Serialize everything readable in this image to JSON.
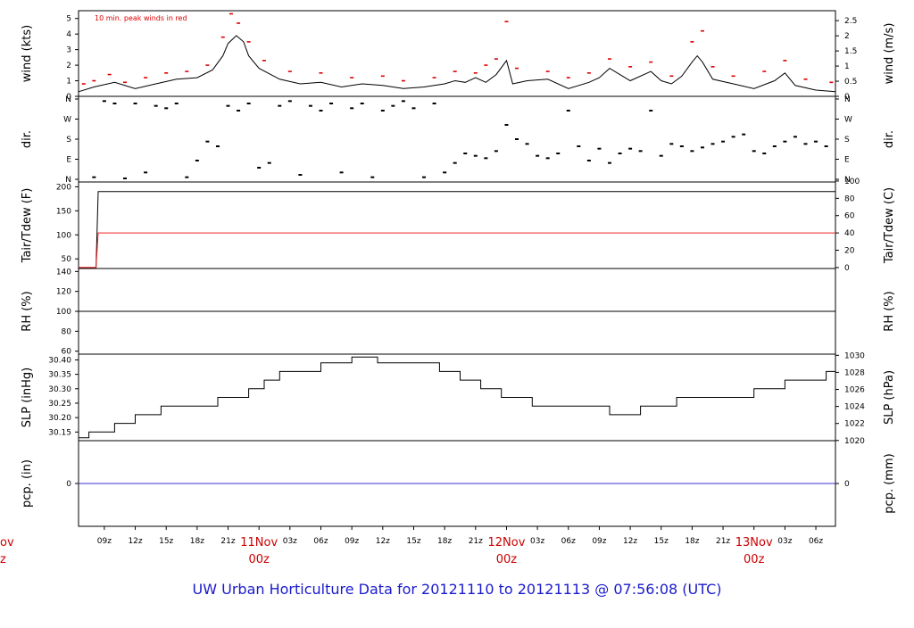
{
  "title": "UW Urban Horticulture Data for 20121110  to  20121113 @ 07:56:08  (UTC)",
  "colors": {
    "title": "#1a1acd",
    "date_labels": "#cc0000",
    "peak_wind": "#dd0000",
    "tdew_line": "#ee2222",
    "precip_line": "#3333cc",
    "data": "#000000"
  },
  "time_axis": {
    "start_hour": 6.5,
    "end_hour": 79.9,
    "tick_hours": [
      9,
      12,
      15,
      18,
      21,
      24,
      27,
      30,
      33,
      36,
      39,
      42,
      45,
      48,
      51,
      54,
      57,
      60,
      63,
      66,
      69,
      72,
      75,
      78
    ],
    "tick_labels": [
      "09z",
      "12z",
      "15z",
      "18z",
      "21z",
      "",
      "03z",
      "06z",
      "09z",
      "12z",
      "15z",
      "18z",
      "21z",
      "",
      "03z",
      "06z",
      "09z",
      "12z",
      "15z",
      "18z",
      "21z",
      "",
      "03z",
      "06z"
    ],
    "day_hours": [
      24,
      48,
      72
    ],
    "day_labels": [
      {
        "date": "11Nov",
        "time": "00z"
      },
      {
        "date": "12Nov",
        "time": "00z"
      },
      {
        "date": "13Nov",
        "time": "00z"
      }
    ],
    "cutoff_label": {
      "date": "ov",
      "time": "z"
    }
  },
  "chart_data": [
    {
      "type": "line",
      "id": "wind",
      "ylabel": "wind (kts)",
      "ylabel_right": "wind (m/s)",
      "ylim": [
        0,
        5.5
      ],
      "yticks": [
        0,
        1,
        2,
        3,
        4,
        5
      ],
      "yticks_right": [
        0,
        0.5,
        1,
        1.5,
        2,
        2.5
      ],
      "annotation": "10 min. peak winds in red",
      "series": [
        {
          "values": [
            [
              6.5,
              0.3
            ],
            [
              8,
              0.6
            ],
            [
              10,
              0.9
            ],
            [
              12,
              0.5
            ],
            [
              14,
              0.8
            ],
            [
              16,
              1.1
            ],
            [
              18,
              1.2
            ],
            [
              19.5,
              1.7
            ],
            [
              20.5,
              2.6
            ],
            [
              21,
              3.4
            ],
            [
              21.8,
              3.9
            ],
            [
              22.5,
              3.5
            ],
            [
              23,
              2.6
            ],
            [
              24,
              1.8
            ],
            [
              26,
              1.1
            ],
            [
              28,
              0.8
            ],
            [
              30,
              0.9
            ],
            [
              32,
              0.6
            ],
            [
              34,
              0.8
            ],
            [
              36,
              0.7
            ],
            [
              38,
              0.5
            ],
            [
              40,
              0.6
            ],
            [
              42,
              0.8
            ],
            [
              43,
              1.0
            ],
            [
              44,
              0.9
            ],
            [
              45,
              1.2
            ],
            [
              46,
              0.9
            ],
            [
              47,
              1.4
            ],
            [
              48,
              2.3
            ],
            [
              48.6,
              0.8
            ],
            [
              50,
              1.0
            ],
            [
              52,
              1.1
            ],
            [
              54,
              0.5
            ],
            [
              56,
              0.9
            ],
            [
              57,
              1.2
            ],
            [
              58,
              1.8
            ],
            [
              59,
              1.4
            ],
            [
              60,
              1.0
            ],
            [
              62,
              1.6
            ],
            [
              63,
              1.0
            ],
            [
              64,
              0.8
            ],
            [
              65,
              1.3
            ],
            [
              66,
              2.2
            ],
            [
              66.5,
              2.6
            ],
            [
              67,
              2.2
            ],
            [
              68,
              1.1
            ],
            [
              70,
              0.8
            ],
            [
              72,
              0.5
            ],
            [
              74,
              1.0
            ],
            [
              75,
              1.5
            ],
            [
              76,
              0.7
            ],
            [
              78,
              0.4
            ],
            [
              79.9,
              0.3
            ]
          ]
        },
        {
          "values": [
            [
              7,
              0.8
            ],
            [
              8,
              1.0
            ],
            [
              9.5,
              1.4
            ],
            [
              11,
              0.9
            ],
            [
              13,
              1.2
            ],
            [
              15,
              1.5
            ],
            [
              17,
              1.6
            ],
            [
              19,
              2.0
            ],
            [
              20.5,
              3.8
            ],
            [
              21.3,
              5.3
            ],
            [
              22,
              4.7
            ],
            [
              23,
              3.5
            ],
            [
              24.5,
              2.3
            ],
            [
              27,
              1.6
            ],
            [
              30,
              1.5
            ],
            [
              33,
              1.2
            ],
            [
              36,
              1.3
            ],
            [
              38,
              1.0
            ],
            [
              41,
              1.2
            ],
            [
              43,
              1.6
            ],
            [
              45,
              1.5
            ],
            [
              46,
              2.0
            ],
            [
              47,
              2.4
            ],
            [
              48,
              4.8
            ],
            [
              49,
              1.8
            ],
            [
              52,
              1.6
            ],
            [
              54,
              1.2
            ],
            [
              56,
              1.5
            ],
            [
              58,
              2.4
            ],
            [
              60,
              1.9
            ],
            [
              62,
              2.2
            ],
            [
              64,
              1.3
            ],
            [
              66,
              3.5
            ],
            [
              67,
              4.2
            ],
            [
              68,
              1.9
            ],
            [
              70,
              1.3
            ],
            [
              73,
              1.6
            ],
            [
              75,
              2.3
            ],
            [
              77,
              1.1
            ],
            [
              79.5,
              0.9
            ]
          ]
        }
      ]
    },
    {
      "type": "scatter",
      "id": "dir",
      "ylabel": "dir.",
      "ylabel_right": "dir.",
      "ylim": [
        0,
        360
      ],
      "ytick_labels": [
        "N",
        "E",
        "S",
        "W",
        "N"
      ],
      "values": [
        [
          8,
          20
        ],
        [
          9,
          340
        ],
        [
          10,
          330
        ],
        [
          11,
          15
        ],
        [
          12,
          330
        ],
        [
          13,
          40
        ],
        [
          14,
          320
        ],
        [
          15,
          310
        ],
        [
          16,
          330
        ],
        [
          17,
          20
        ],
        [
          18,
          90
        ],
        [
          19,
          170
        ],
        [
          20,
          150
        ],
        [
          21,
          320
        ],
        [
          22,
          300
        ],
        [
          23,
          330
        ],
        [
          24,
          60
        ],
        [
          25,
          80
        ],
        [
          26,
          320
        ],
        [
          27,
          340
        ],
        [
          28,
          30
        ],
        [
          29,
          320
        ],
        [
          30,
          300
        ],
        [
          31,
          330
        ],
        [
          32,
          40
        ],
        [
          33,
          310
        ],
        [
          34,
          330
        ],
        [
          35,
          20
        ],
        [
          36,
          300
        ],
        [
          37,
          320
        ],
        [
          38,
          340
        ],
        [
          39,
          310
        ],
        [
          40,
          20
        ],
        [
          41,
          330
        ],
        [
          42,
          40
        ],
        [
          43,
          80
        ],
        [
          44,
          120
        ],
        [
          45,
          110
        ],
        [
          46,
          100
        ],
        [
          47,
          130
        ],
        [
          48,
          240
        ],
        [
          49,
          180
        ],
        [
          50,
          160
        ],
        [
          51,
          110
        ],
        [
          52,
          100
        ],
        [
          53,
          120
        ],
        [
          54,
          300
        ],
        [
          55,
          150
        ],
        [
          56,
          90
        ],
        [
          57,
          140
        ],
        [
          58,
          80
        ],
        [
          59,
          120
        ],
        [
          60,
          140
        ],
        [
          61,
          130
        ],
        [
          62,
          300
        ],
        [
          63,
          110
        ],
        [
          64,
          160
        ],
        [
          65,
          150
        ],
        [
          66,
          130
        ],
        [
          67,
          145
        ],
        [
          68,
          160
        ],
        [
          69,
          170
        ],
        [
          70,
          190
        ],
        [
          71,
          200
        ],
        [
          72,
          130
        ],
        [
          73,
          120
        ],
        [
          74,
          150
        ],
        [
          75,
          170
        ],
        [
          76,
          190
        ],
        [
          77,
          160
        ],
        [
          78,
          170
        ],
        [
          79,
          150
        ]
      ]
    },
    {
      "type": "line",
      "id": "tair",
      "ylabel": "Tair/Tdew (F)",
      "ylabel_right": "Tair/Tdew (C)",
      "ylim": [
        30,
        210
      ],
      "yticks": [
        50,
        100,
        150,
        200
      ],
      "yticks_right": [
        0,
        20,
        40,
        60,
        80,
        100
      ],
      "series": [
        {
          "values": [
            [
              6.5,
              32
            ],
            [
              8.2,
              32
            ],
            [
              8.4,
              190
            ],
            [
              79.9,
              190
            ]
          ]
        },
        {
          "values": [
            [
              6.5,
              32
            ],
            [
              8.2,
              32
            ],
            [
              8.4,
              104
            ],
            [
              79.9,
              104
            ]
          ]
        }
      ]
    },
    {
      "type": "line",
      "id": "rh",
      "ylabel": "RH (%)",
      "ylabel_right": "RH (%)",
      "ylim": [
        57,
        143
      ],
      "yticks": [
        60,
        80,
        100,
        120,
        140
      ],
      "series": [
        {
          "values": [
            [
              6.5,
              100
            ],
            [
              79.9,
              100
            ]
          ]
        }
      ]
    },
    {
      "type": "line",
      "id": "slp",
      "ylabel": "SLP (inHg)",
      "ylabel_right": "SLP (hPa)",
      "ylim": [
        30.12,
        30.42
      ],
      "yticks": [
        30.15,
        30.2,
        30.25,
        30.3,
        30.35,
        30.4
      ],
      "ytick_labels": [
        "30.15",
        "30.20",
        "30.25",
        "30.30",
        "30.35",
        "30.40"
      ],
      "yticks_right": [
        1020,
        1022,
        1024,
        1026,
        1028,
        1030
      ],
      "series": [
        {
          "values": [
            [
              6.5,
              30.13
            ],
            [
              7.5,
              30.13
            ],
            [
              7.5,
              30.15
            ],
            [
              10,
              30.15
            ],
            [
              10,
              30.18
            ],
            [
              12,
              30.18
            ],
            [
              12,
              30.21
            ],
            [
              14.5,
              30.21
            ],
            [
              14.5,
              30.24
            ],
            [
              20,
              30.24
            ],
            [
              20,
              30.27
            ],
            [
              23,
              30.27
            ],
            [
              23,
              30.3
            ],
            [
              24.5,
              30.3
            ],
            [
              24.5,
              30.33
            ],
            [
              26,
              30.33
            ],
            [
              26,
              30.36
            ],
            [
              30,
              30.36
            ],
            [
              30,
              30.39
            ],
            [
              33,
              30.39
            ],
            [
              33,
              30.41
            ],
            [
              35.5,
              30.41
            ],
            [
              35.5,
              30.39
            ],
            [
              41.5,
              30.39
            ],
            [
              41.5,
              30.36
            ],
            [
              43.5,
              30.36
            ],
            [
              43.5,
              30.33
            ],
            [
              45.5,
              30.33
            ],
            [
              45.5,
              30.3
            ],
            [
              47.5,
              30.3
            ],
            [
              47.5,
              30.27
            ],
            [
              50.5,
              30.27
            ],
            [
              50.5,
              30.24
            ],
            [
              58,
              30.24
            ],
            [
              58,
              30.21
            ],
            [
              61,
              30.21
            ],
            [
              61,
              30.24
            ],
            [
              64.5,
              30.24
            ],
            [
              64.5,
              30.27
            ],
            [
              72,
              30.27
            ],
            [
              72,
              30.3
            ],
            [
              75,
              30.3
            ],
            [
              75,
              30.33
            ],
            [
              79,
              30.33
            ],
            [
              79,
              30.36
            ],
            [
              79.9,
              30.36
            ]
          ]
        }
      ]
    },
    {
      "type": "line",
      "id": "pcp",
      "ylabel": "pcp. (in)",
      "ylabel_right": "pcp. (mm)",
      "ylim": [
        -1,
        1
      ],
      "yticks": [
        0
      ],
      "yticks_right": [
        0
      ],
      "series": [
        {
          "values": [
            [
              6.5,
              0
            ],
            [
              79.9,
              0
            ]
          ]
        }
      ]
    }
  ]
}
